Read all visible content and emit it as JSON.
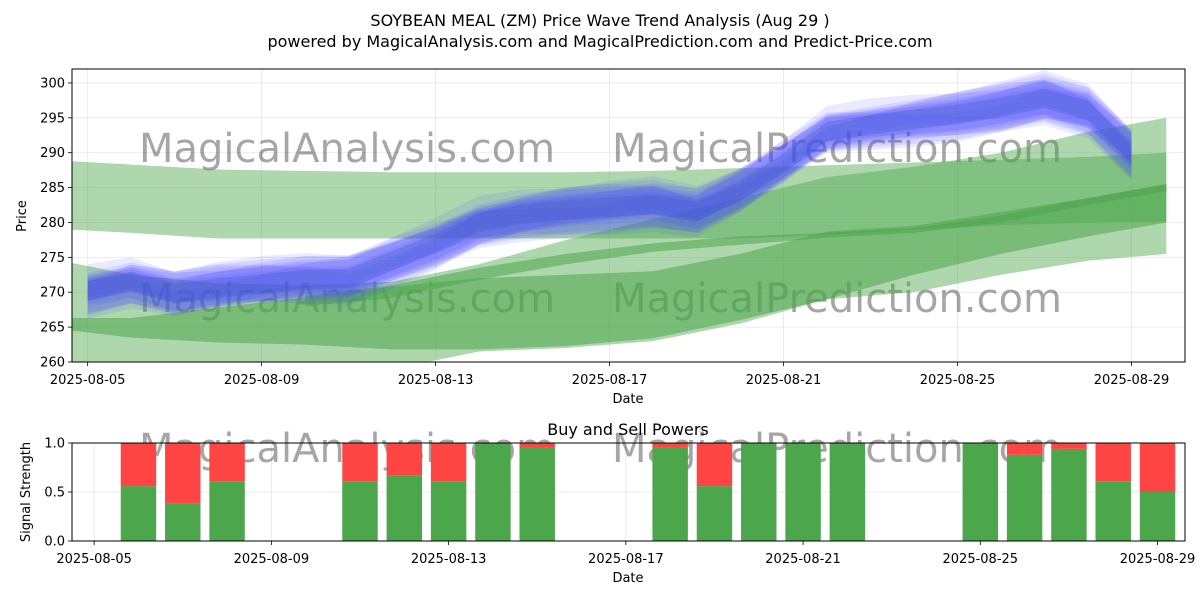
{
  "header": {
    "title": "SOYBEAN MEAL (ZM) Price Wave Trend Analysis (Aug 29 )",
    "subtitle": "powered by MagicalAnalysis.com and MagicalPrediction.com and Predict-Price.com"
  },
  "watermarks": [
    "MagicalAnalysis.com",
    "MagicalPrediction.com"
  ],
  "colors": {
    "blue_band": "#4d4dff",
    "green_band": "#4ca64c",
    "buy": "#4ca64c",
    "sell": "#ff4444"
  },
  "chart_data": [
    {
      "type": "area",
      "title": "",
      "xlabel": "Date",
      "ylabel": "Price",
      "xlim": [
        "2025-08-04",
        "2025-08-30"
      ],
      "ylim": [
        260,
        302
      ],
      "x_ticks": [
        "2025-08-05",
        "2025-08-09",
        "2025-08-13",
        "2025-08-17",
        "2025-08-21",
        "2025-08-25",
        "2025-08-29"
      ],
      "y_ticks": [
        260,
        265,
        270,
        275,
        280,
        285,
        290,
        295,
        300
      ],
      "grid": true,
      "series": [
        {
          "x": [
            "2025-08-05",
            "2025-08-06",
            "2025-08-07",
            "2025-08-08",
            "2025-08-09",
            "2025-08-10",
            "2025-08-11",
            "2025-08-12",
            "2025-08-13",
            "2025-08-14",
            "2025-08-15",
            "2025-08-16",
            "2025-08-17",
            "2025-08-18",
            "2025-08-19",
            "2025-08-20",
            "2025-08-21",
            "2025-08-22",
            "2025-08-23",
            "2025-08-24",
            "2025-08-25",
            "2025-08-26",
            "2025-08-27",
            "2025-08-28",
            "2025-08-29"
          ],
          "values": [
            270.2,
            271.5,
            269.8,
            270.6,
            271.2,
            271.8,
            272.0,
            274.5,
            277.0,
            280.0,
            281.2,
            281.8,
            282.2,
            282.6,
            281.5,
            284.5,
            288.5,
            293.0,
            294.0,
            294.8,
            295.5,
            296.5,
            297.8,
            296.0,
            290.0
          ],
          "band": 3
        },
        {
          "x": [
            "2025-08-04",
            "2025-08-06",
            "2025-08-08",
            "2025-08-10",
            "2025-08-12",
            "2025-08-14",
            "2025-08-16",
            "2025-08-18",
            "2025-08-20",
            "2025-08-22",
            "2025-08-24",
            "2025-08-26",
            "2025-08-28",
            "2025-08-29.8"
          ],
          "upper": [
            289,
            288.3,
            287.6,
            287.4,
            287.2,
            287.2,
            287.2,
            287.4,
            287.8,
            288.2,
            288.6,
            289.0,
            289.4,
            290.0
          ],
          "lower": [
            279.2,
            278.5,
            277.7,
            277.7,
            277.7,
            277.7,
            277.7,
            277.7,
            277.7,
            278.2,
            279.0,
            279.6,
            280.0,
            280.1
          ]
        },
        {
          "x": [
            "2025-08-04",
            "2025-08-06",
            "2025-08-08",
            "2025-08-10",
            "2025-08-12",
            "2025-08-14",
            "2025-08-16",
            "2025-08-18",
            "2025-08-20",
            "2025-08-22",
            "2025-08-24",
            "2025-08-26",
            "2025-08-28",
            "2025-08-29.8"
          ],
          "upper": [
            275,
            272.5,
            271.3,
            271.0,
            271.5,
            274.0,
            277.5,
            280.5,
            283.5,
            286.5,
            288.0,
            290.0,
            293.0,
            295.0
          ],
          "lower": [
            258.0,
            256.0,
            254.0,
            256.5,
            259.0,
            261.5,
            262.0,
            263.0,
            265.5,
            269.0,
            270.0,
            272.5,
            274.5,
            275.5
          ]
        },
        {
          "x": [
            "2025-08-04",
            "2025-08-06",
            "2025-08-08",
            "2025-08-10",
            "2025-08-12",
            "2025-08-14",
            "2025-08-16",
            "2025-08-18",
            "2025-08-20",
            "2025-08-22",
            "2025-08-24",
            "2025-08-26",
            "2025-08-28",
            "2025-08-29.8"
          ],
          "upper": [
            266.3,
            266.3,
            267.8,
            269.2,
            270.8,
            272.0,
            272.5,
            273.0,
            275.5,
            278.7,
            279.5,
            281.5,
            283.5,
            285.5
          ],
          "lower": [
            265.0,
            263.5,
            262.8,
            262.5,
            261.8,
            261.8,
            262.3,
            263.4,
            266.0,
            269.0,
            272.5,
            275.5,
            278.0,
            280.0
          ]
        },
        {
          "x": [
            "2025-08-10",
            "2025-08-12",
            "2025-08-14",
            "2025-08-16",
            "2025-08-18",
            "2025-08-20",
            "2025-08-22",
            "2025-08-24",
            "2025-08-26",
            "2025-08-28",
            "2025-08-29.8"
          ],
          "upper": [
            269.5,
            271.0,
            273.5,
            275.5,
            277.0,
            278.0,
            278.5,
            279.2,
            281.0,
            283.5,
            285.5
          ],
          "lower": [
            268.0,
            269.2,
            271.8,
            274.0,
            275.8,
            276.8,
            277.8,
            278.5,
            280.0,
            282.5,
            284.5
          ]
        }
      ]
    },
    {
      "type": "bar",
      "title": "Buy and Sell Powers",
      "xlabel": "Date",
      "ylabel": "Signal Strength",
      "ylim": [
        0,
        1
      ],
      "y_ticks": [
        "0.0",
        "0.5",
        "1.0"
      ],
      "x_ticks": [
        "2025-08-05",
        "2025-08-09",
        "2025-08-13",
        "2025-08-17",
        "2025-08-21",
        "2025-08-25",
        "2025-08-29"
      ],
      "grid": true,
      "categories": [
        "2025-08-06",
        "2025-08-07",
        "2025-08-08",
        "2025-08-11",
        "2025-08-12",
        "2025-08-13",
        "2025-08-14",
        "2025-08-15",
        "2025-08-18",
        "2025-08-19",
        "2025-08-20",
        "2025-08-21",
        "2025-08-22",
        "2025-08-25",
        "2025-08-26",
        "2025-08-27",
        "2025-08-28",
        "2025-08-29"
      ],
      "series": [
        {
          "values": [
            0.56,
            0.38,
            0.61,
            0.61,
            0.67,
            0.61,
            1.0,
            0.95,
            0.95,
            0.56,
            1.0,
            1.0,
            1.0,
            1.0,
            0.88,
            0.94,
            0.61,
            0.5
          ]
        },
        {
          "values": [
            0.44,
            0.62,
            0.39,
            0.39,
            0.33,
            0.39,
            0.0,
            0.05,
            0.05,
            0.44,
            0.0,
            0.0,
            0.0,
            0.0,
            0.12,
            0.06,
            0.39,
            0.5
          ]
        }
      ]
    }
  ]
}
